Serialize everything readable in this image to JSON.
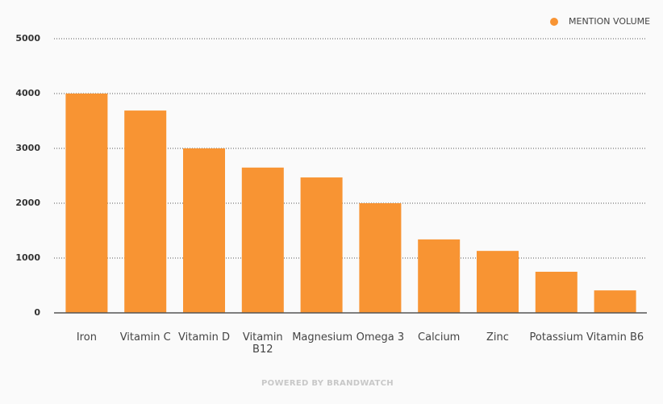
{
  "chart_data": {
    "type": "bar",
    "categories": [
      "Iron",
      "Vitamin C",
      "Vitamin D",
      "Vitamin B12",
      "Magnesium",
      "Omega 3",
      "Calcium",
      "Zinc",
      "Potassium",
      "Vitamin B6"
    ],
    "series": [
      {
        "name": "MENTION VOLUME",
        "color": "#f89433",
        "values": [
          4000,
          3690,
          3000,
          2650,
          2470,
          2000,
          1340,
          1130,
          750,
          410
        ]
      }
    ],
    "ylim": [
      0,
      5000
    ],
    "yticks": [
      0,
      1000,
      2000,
      3000,
      4000,
      5000
    ],
    "grid": true,
    "legend": "top-right",
    "footer": "POWERED BY BRANDWATCH"
  }
}
